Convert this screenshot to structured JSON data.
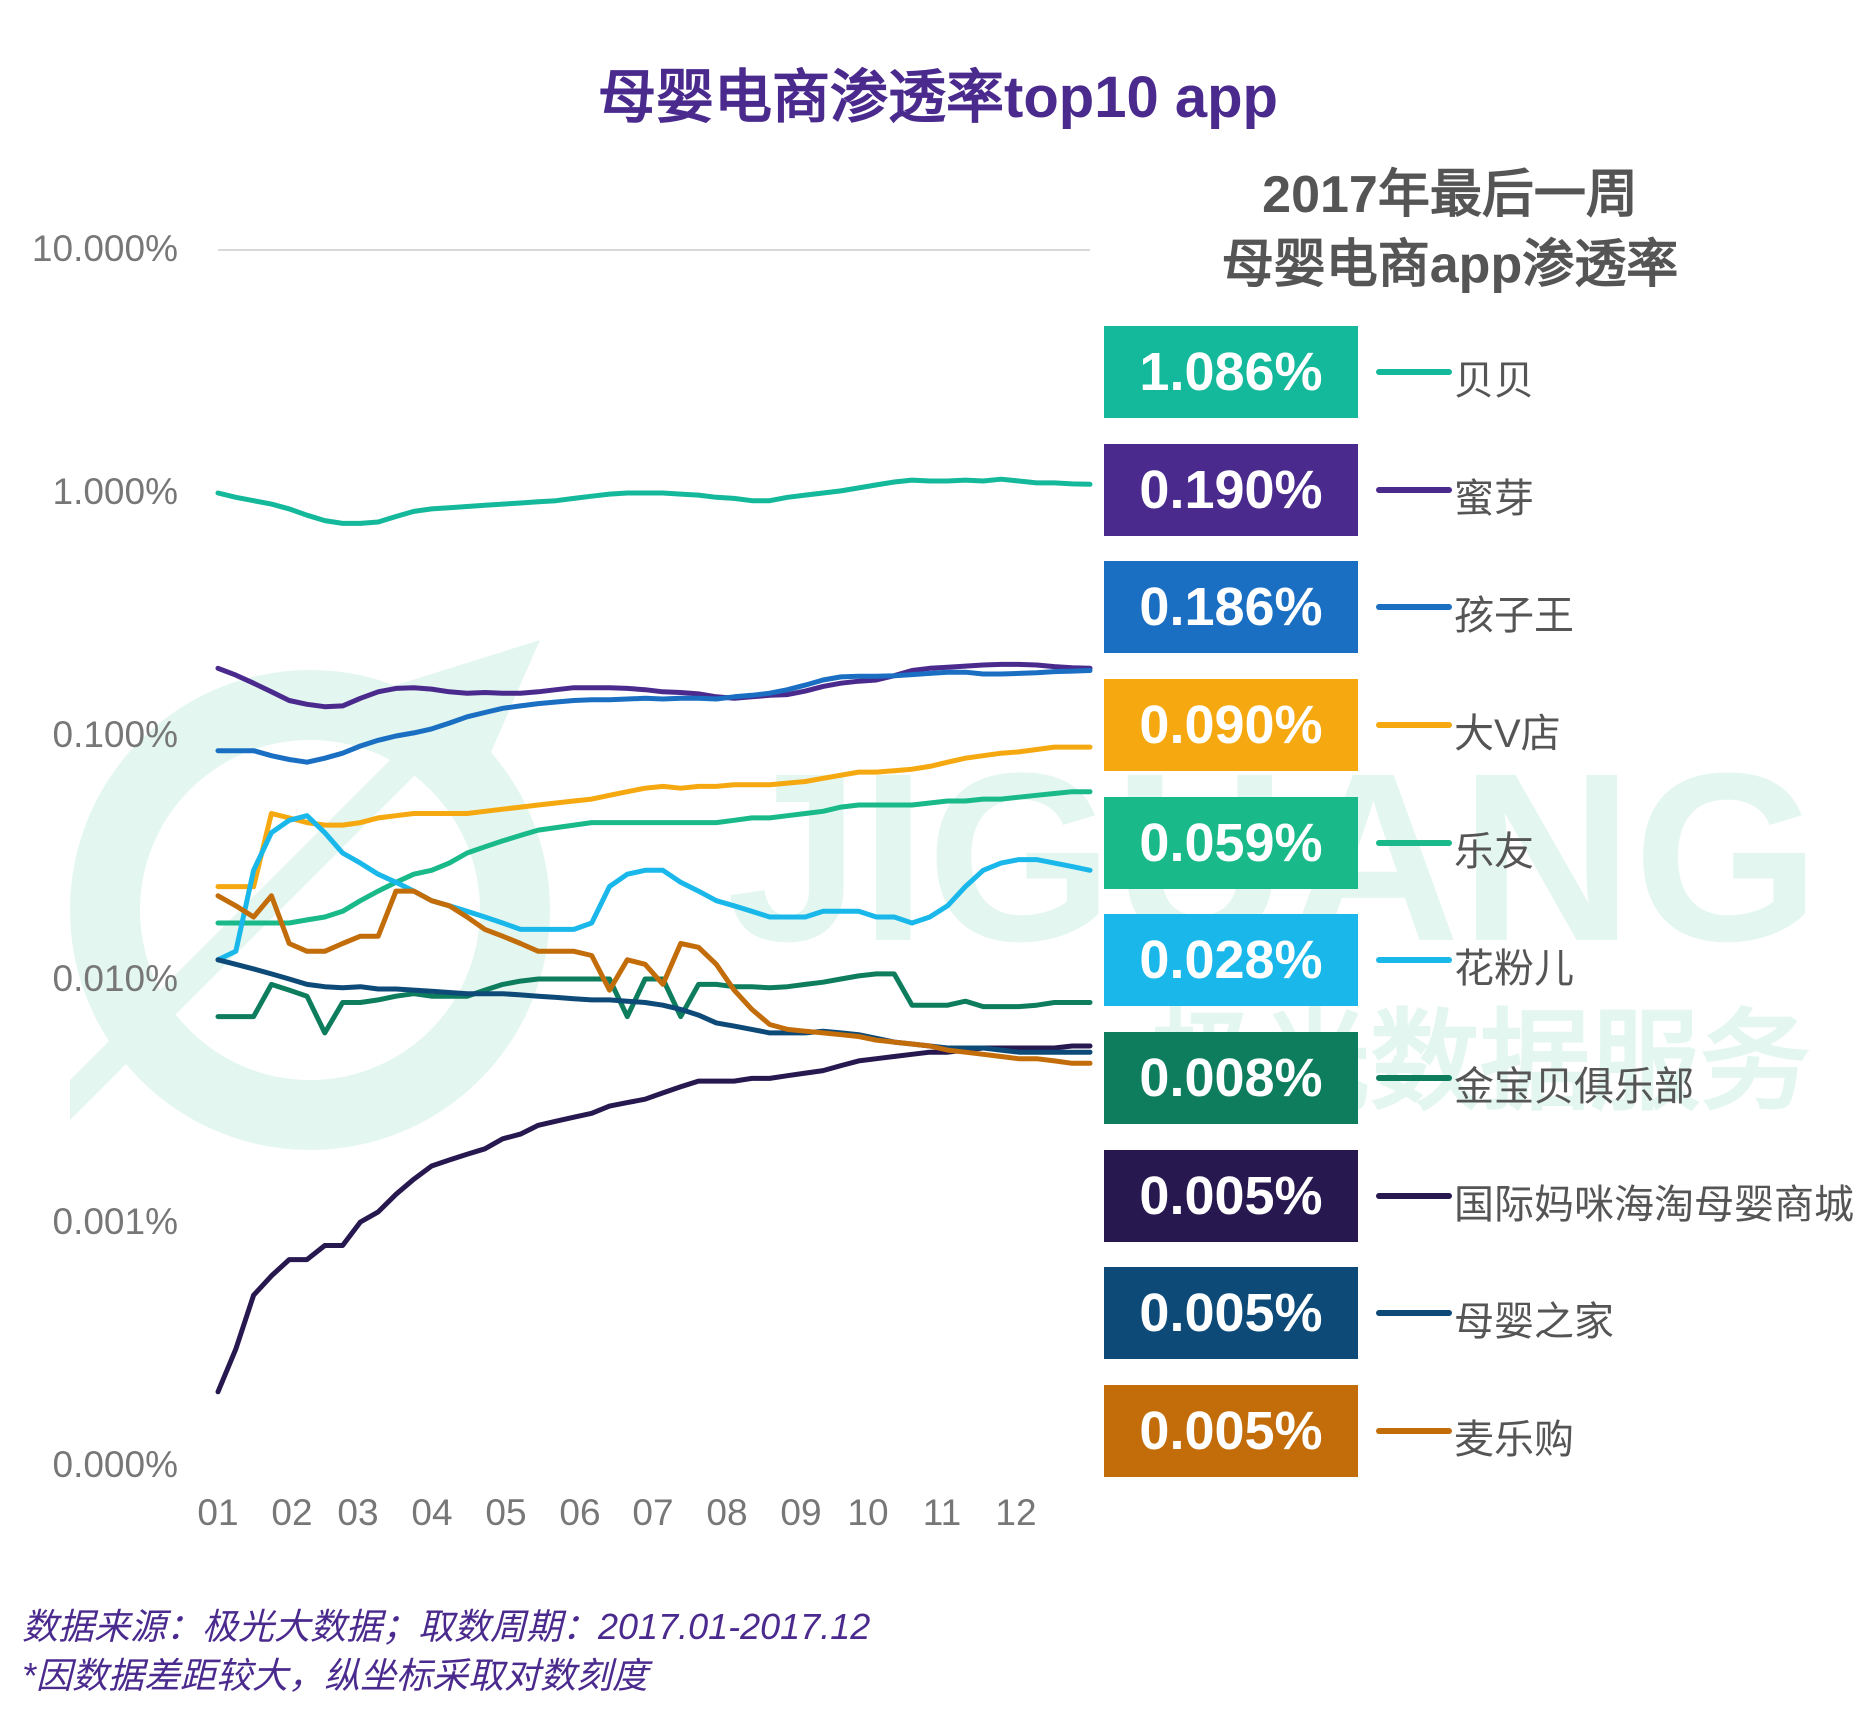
{
  "title": "母婴电商渗透率top10 app",
  "panel_title_line1": "2017年最后一周",
  "panel_title_line2": "母婴电商app渗透率",
  "watermark_text": "JIGUANG 极光数据服务",
  "footnote_line1": "数据来源：极光大数据；取数周期：2017.01-2017.12",
  "footnote_line2": "*因数据差距较大，纵坐标采取对数刻度",
  "chart_data": {
    "type": "line",
    "title": "母婴电商渗透率top10 app",
    "y_scale": "log",
    "ylim": [
      0.0001,
      10
    ],
    "y_ticks": [
      {
        "value": 10,
        "label": "10.000%"
      },
      {
        "value": 1,
        "label": "1.000%"
      },
      {
        "value": 0.1,
        "label": "0.100%"
      },
      {
        "value": 0.01,
        "label": "0.010%"
      },
      {
        "value": 0.001,
        "label": "0.001%"
      },
      {
        "value": 0.0001,
        "label": "0.000%"
      }
    ],
    "x_ticks": [
      {
        "week": 0,
        "label": "01"
      },
      {
        "week": 5,
        "label": "02"
      },
      {
        "week": 9.5,
        "label": "03"
      },
      {
        "week": 14.5,
        "label": "04"
      },
      {
        "week": 19.5,
        "label": "05"
      },
      {
        "week": 24.5,
        "label": "06"
      },
      {
        "week": 29.5,
        "label": "07"
      },
      {
        "week": 34.5,
        "label": "08"
      },
      {
        "week": 39.5,
        "label": "09"
      },
      {
        "week": 44,
        "label": "10"
      },
      {
        "week": 49,
        "label": "11"
      },
      {
        "week": 54,
        "label": "12"
      }
    ],
    "x_range_weeks": [
      0,
      59
    ],
    "series": [
      {
        "name": "贝贝",
        "final": "1.086%",
        "color": "#14b89a",
        "values": [
          1.0,
          0.96,
          0.93,
          0.9,
          0.86,
          0.81,
          0.77,
          0.75,
          0.75,
          0.76,
          0.8,
          0.84,
          0.86,
          0.87,
          0.88,
          0.89,
          0.9,
          0.91,
          0.92,
          0.93,
          0.95,
          0.97,
          0.99,
          1.0,
          1.0,
          1.0,
          0.99,
          0.98,
          0.96,
          0.95,
          0.93,
          0.93,
          0.96,
          0.98,
          1.0,
          1.02,
          1.05,
          1.08,
          1.11,
          1.13,
          1.12,
          1.12,
          1.13,
          1.12,
          1.14,
          1.12,
          1.1,
          1.1,
          1.09,
          1.086
        ]
      },
      {
        "name": "蜜芽",
        "final": "0.190%",
        "color": "#4b2a8e",
        "values": [
          0.19,
          0.178,
          0.165,
          0.152,
          0.14,
          0.135,
          0.132,
          0.133,
          0.143,
          0.152,
          0.157,
          0.158,
          0.156,
          0.152,
          0.15,
          0.151,
          0.15,
          0.15,
          0.152,
          0.155,
          0.158,
          0.158,
          0.158,
          0.157,
          0.155,
          0.152,
          0.151,
          0.149,
          0.145,
          0.143,
          0.145,
          0.147,
          0.148,
          0.153,
          0.16,
          0.165,
          0.168,
          0.17,
          0.177,
          0.186,
          0.19,
          0.192,
          0.194,
          0.196,
          0.197,
          0.197,
          0.196,
          0.193,
          0.191,
          0.19
        ]
      },
      {
        "name": "孩子王",
        "final": "0.186%",
        "color": "#1a6fc2",
        "values": [
          0.087,
          0.087,
          0.087,
          0.083,
          0.08,
          0.078,
          0.081,
          0.085,
          0.091,
          0.096,
          0.1,
          0.103,
          0.107,
          0.113,
          0.12,
          0.125,
          0.13,
          0.133,
          0.136,
          0.138,
          0.14,
          0.141,
          0.141,
          0.142,
          0.143,
          0.142,
          0.143,
          0.143,
          0.142,
          0.145,
          0.147,
          0.15,
          0.155,
          0.162,
          0.17,
          0.175,
          0.176,
          0.176,
          0.177,
          0.179,
          0.181,
          0.183,
          0.183,
          0.18,
          0.18,
          0.181,
          0.182,
          0.184,
          0.185,
          0.186
        ]
      },
      {
        "name": "大V店",
        "final": "0.090%",
        "color": "#f5a80f",
        "values": [
          0.024,
          0.024,
          0.024,
          0.048,
          0.046,
          0.044,
          0.043,
          0.043,
          0.044,
          0.046,
          0.047,
          0.048,
          0.048,
          0.048,
          0.048,
          0.049,
          0.05,
          0.051,
          0.052,
          0.053,
          0.054,
          0.055,
          0.057,
          0.059,
          0.061,
          0.062,
          0.061,
          0.062,
          0.062,
          0.063,
          0.063,
          0.063,
          0.064,
          0.065,
          0.067,
          0.069,
          0.071,
          0.071,
          0.072,
          0.073,
          0.075,
          0.078,
          0.081,
          0.083,
          0.085,
          0.086,
          0.088,
          0.09,
          0.09,
          0.09
        ]
      },
      {
        "name": "乐友",
        "final": "0.059%",
        "color": "#19b98a",
        "values": [
          0.017,
          0.017,
          0.017,
          0.017,
          0.017,
          0.0175,
          0.018,
          0.019,
          0.021,
          0.023,
          0.025,
          0.027,
          0.028,
          0.03,
          0.033,
          0.035,
          0.037,
          0.039,
          0.041,
          0.042,
          0.043,
          0.044,
          0.044,
          0.044,
          0.044,
          0.044,
          0.044,
          0.044,
          0.044,
          0.045,
          0.046,
          0.046,
          0.047,
          0.048,
          0.049,
          0.051,
          0.052,
          0.052,
          0.052,
          0.052,
          0.053,
          0.054,
          0.054,
          0.055,
          0.055,
          0.056,
          0.057,
          0.058,
          0.059,
          0.059
        ]
      },
      {
        "name": "花粉儿",
        "final": "0.028%",
        "color": "#1ab8ea",
        "values": [
          0.012,
          0.013,
          0.028,
          0.04,
          0.045,
          0.047,
          0.04,
          0.033,
          0.03,
          0.027,
          0.025,
          0.023,
          0.021,
          0.02,
          0.019,
          0.018,
          0.017,
          0.016,
          0.016,
          0.016,
          0.016,
          0.017,
          0.024,
          0.027,
          0.028,
          0.028,
          0.025,
          0.023,
          0.021,
          0.02,
          0.019,
          0.018,
          0.018,
          0.018,
          0.019,
          0.019,
          0.019,
          0.018,
          0.018,
          0.017,
          0.018,
          0.02,
          0.024,
          0.028,
          0.03,
          0.031,
          0.031,
          0.03,
          0.029,
          0.028
        ]
      },
      {
        "name": "金宝贝俱乐部",
        "final": "0.008%",
        "color": "#0e7d5e",
        "values": [
          0.007,
          0.007,
          0.007,
          0.0095,
          0.009,
          0.0085,
          0.006,
          0.008,
          0.008,
          0.0082,
          0.0085,
          0.0087,
          0.0085,
          0.0085,
          0.0085,
          0.009,
          0.0095,
          0.0098,
          0.01,
          0.01,
          0.01,
          0.01,
          0.01,
          0.007,
          0.01,
          0.01,
          0.007,
          0.0095,
          0.0095,
          0.0093,
          0.0093,
          0.0092,
          0.0093,
          0.0095,
          0.0097,
          0.01,
          0.0103,
          0.0105,
          0.0105,
          0.0078,
          0.0078,
          0.0078,
          0.0081,
          0.0077,
          0.0077,
          0.0077,
          0.0078,
          0.008,
          0.008,
          0.008
        ]
      },
      {
        "name": "国际妈咪海淘母婴商城",
        "final": "0.005%",
        "color": "#27184f",
        "values": [
          0.0002,
          0.0003,
          0.0005,
          0.0006,
          0.0007,
          0.0007,
          0.0008,
          0.0008,
          0.001,
          0.0011,
          0.0013,
          0.0015,
          0.0017,
          0.0018,
          0.0019,
          0.002,
          0.0022,
          0.0023,
          0.0025,
          0.0026,
          0.0027,
          0.0028,
          0.003,
          0.0031,
          0.0032,
          0.0034,
          0.0036,
          0.0038,
          0.0038,
          0.0038,
          0.0039,
          0.0039,
          0.004,
          0.0041,
          0.0042,
          0.0044,
          0.0046,
          0.0047,
          0.0048,
          0.0049,
          0.005,
          0.005,
          0.0051,
          0.0052,
          0.0052,
          0.0052,
          0.0052,
          0.0052,
          0.0053,
          0.0053
        ]
      },
      {
        "name": "母婴之家",
        "final": "0.005%",
        "color": "#0d4a78",
        "values": [
          0.012,
          0.0115,
          0.011,
          0.0105,
          0.01,
          0.0095,
          0.0093,
          0.0092,
          0.0093,
          0.0091,
          0.0091,
          0.009,
          0.0089,
          0.0088,
          0.0087,
          0.0087,
          0.0087,
          0.0086,
          0.0085,
          0.0084,
          0.0083,
          0.0082,
          0.0082,
          0.0081,
          0.008,
          0.0078,
          0.0075,
          0.0071,
          0.0066,
          0.0064,
          0.0062,
          0.006,
          0.006,
          0.006,
          0.0061,
          0.006,
          0.0059,
          0.0057,
          0.0055,
          0.0054,
          0.0053,
          0.0052,
          0.0052,
          0.0052,
          0.0051,
          0.005,
          0.005,
          0.005,
          0.005,
          0.005
        ]
      },
      {
        "name": "麦乐购",
        "final": "0.005%",
        "color": "#c26c0a",
        "values": [
          0.022,
          0.02,
          0.018,
          0.022,
          0.014,
          0.013,
          0.013,
          0.014,
          0.015,
          0.015,
          0.023,
          0.023,
          0.021,
          0.02,
          0.018,
          0.016,
          0.015,
          0.014,
          0.013,
          0.013,
          0.013,
          0.0125,
          0.009,
          0.012,
          0.0115,
          0.0095,
          0.014,
          0.0135,
          0.0115,
          0.009,
          0.0075,
          0.0065,
          0.0062,
          0.0061,
          0.006,
          0.0059,
          0.0058,
          0.0056,
          0.0055,
          0.0054,
          0.0053,
          0.0051,
          0.005,
          0.0049,
          0.0048,
          0.0047,
          0.0047,
          0.0046,
          0.0045,
          0.0045
        ]
      }
    ]
  }
}
